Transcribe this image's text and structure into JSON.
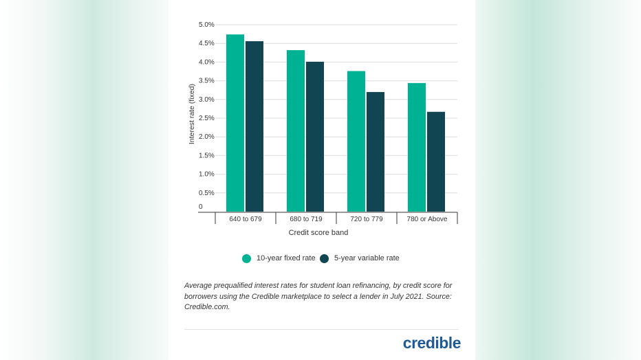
{
  "chart_data": {
    "type": "bar",
    "categories": [
      "640 to 679",
      "680 to 719",
      "720 to 779",
      "780 or Above"
    ],
    "series": [
      {
        "name": "10-year fixed rate",
        "values": [
          4.74,
          4.32,
          3.76,
          3.44
        ],
        "color": "#00b294"
      },
      {
        "name": "5-year variable rate",
        "values": [
          4.56,
          4.01,
          3.2,
          2.67
        ],
        "color": "#104551"
      }
    ],
    "title": "",
    "xlabel": "Credit score band",
    "ylabel": "Interest rate (fixed)",
    "ylim": [
      0,
      5
    ],
    "yticks": [
      {
        "value": 0,
        "label": "0"
      },
      {
        "value": 0.5,
        "label": "0.5%"
      },
      {
        "value": 1,
        "label": "1.0%"
      },
      {
        "value": 1.5,
        "label": "1.5%"
      },
      {
        "value": 2,
        "label": "2.0%"
      },
      {
        "value": 2.5,
        "label": "2.5%"
      },
      {
        "value": 3,
        "label": "3.0%"
      },
      {
        "value": 3.5,
        "label": "3.5%"
      },
      {
        "value": 4,
        "label": "4.0%"
      },
      {
        "value": 4.5,
        "label": "4.5%"
      },
      {
        "value": 5,
        "label": "5.0%"
      }
    ],
    "grid": true,
    "legend_position": "bottom"
  },
  "caption": "Average prequalified interest rates for student loan refinancing, by credit score for borrowers using the Credible marketplace to select a lender in July 2021. Source: Credible.com.",
  "brand": {
    "logo_text": "credible",
    "color": "#1f5b92"
  }
}
